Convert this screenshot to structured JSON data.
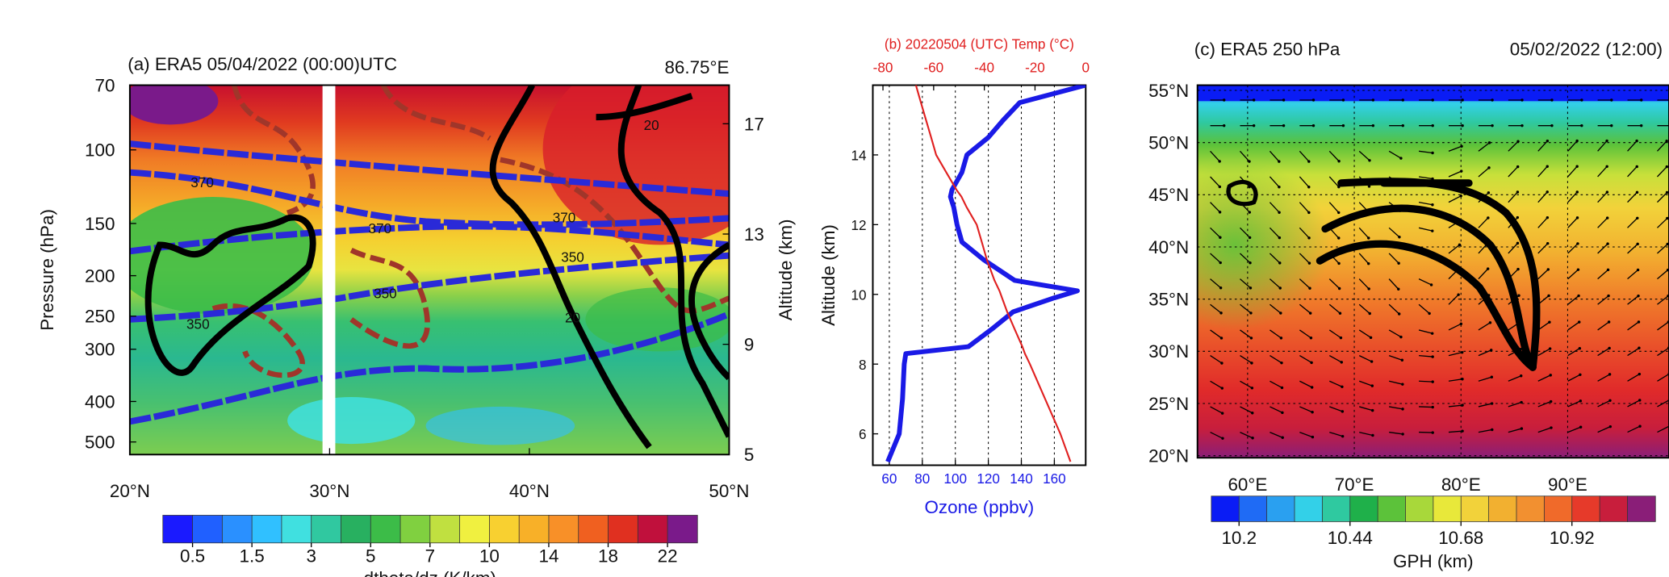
{
  "chart_data": [
    {
      "type": "contour",
      "title": "(a) ERA5 05/04/2022 (00:00)UTC",
      "annotation": "86.75°E",
      "ylabel": "Pressure (hPa)",
      "y2label": "Altitude (km)",
      "ylog": true,
      "xlim": [
        20,
        50
      ],
      "xticks": [
        {
          "value": 20,
          "label": "20°N"
        },
        {
          "value": 30,
          "label": "30°N"
        },
        {
          "value": 40,
          "label": "40°N"
        },
        {
          "value": 50,
          "label": "50°N"
        }
      ],
      "ylim": [
        536,
        70
      ],
      "yticks": [
        70,
        100,
        150,
        200,
        250,
        300,
        400,
        500
      ],
      "y2lim": [
        5,
        18.4
      ],
      "y2ticks": [
        5,
        9,
        13,
        17
      ],
      "contour_labels": [
        370,
        370,
        370,
        350,
        350,
        350,
        20,
        20
      ],
      "colorbar": {
        "label": "dtheta/dz (K/km)",
        "levels": [
          0,
          0.5,
          1,
          1.5,
          2,
          3,
          4,
          5,
          6,
          7,
          8,
          10,
          12,
          14,
          16,
          18,
          20,
          22,
          24
        ],
        "colors": [
          "#1a1aff",
          "#2060ff",
          "#2a90ff",
          "#30c0ff",
          "#40e0e0",
          "#30c8a0",
          "#28b060",
          "#3cbc48",
          "#80d040",
          "#c0e040",
          "#f0f040",
          "#f8d030",
          "#f8b028",
          "#f89028",
          "#f06020",
          "#e03020",
          "#c0103c",
          "#7a1a8a"
        ],
        "ticks": [
          0.5,
          1.5,
          3,
          5,
          7,
          10,
          14,
          18,
          22
        ]
      }
    },
    {
      "type": "line",
      "title": "(b) 20220504 (UTC) Temp (°C)",
      "xlabel": "Ozone (ppbv)",
      "ylabel": "Altitude (km)",
      "grid": true,
      "xlim": [
        50,
        179
      ],
      "xticks": [
        60,
        80,
        100,
        120,
        140,
        160
      ],
      "x2lim": [
        -84,
        0
      ],
      "x2ticks": [
        -80,
        -60,
        -40,
        -20,
        0
      ],
      "ylim": [
        5.1,
        16
      ],
      "yticks": [
        6,
        8,
        10,
        12,
        14
      ],
      "y": [
        5.2,
        6,
        7,
        8,
        8.3,
        8.5,
        9,
        9.5,
        9.9,
        10.1,
        10.4,
        11,
        11.5,
        12,
        12.5,
        12.8,
        13,
        13.5,
        14,
        14.5,
        15,
        15.5,
        16
      ],
      "series": [
        {
          "color": "#1a1ae6",
          "values": [
            59,
            66,
            68,
            69,
            70,
            108,
            122,
            135,
            160,
            174,
            136,
            117,
            104,
            101,
            99,
            97,
            98,
            104,
            107,
            120,
            129,
            139,
            179
          ]
        },
        {
          "color": "#e02020",
          "axis": "x2",
          "values": [
            -6,
            -10,
            -16,
            -22,
            -24,
            -25,
            -28,
            -31,
            -33,
            -34,
            -36,
            -39,
            -41,
            -43,
            -47,
            -49,
            -51,
            -55,
            -59,
            -61,
            -63,
            -65,
            -67
          ]
        }
      ]
    },
    {
      "type": "map",
      "title": "(c)  ERA5 250 hPa",
      "subtitle": "05/02/2022 (12:00)",
      "xlim": [
        55.3,
        99.5
      ],
      "xticks": [
        {
          "value": 60,
          "label": "60°E"
        },
        {
          "value": 70,
          "label": "70°E"
        },
        {
          "value": 80,
          "label": "80°E"
        },
        {
          "value": 90,
          "label": "90°E"
        }
      ],
      "ylim": [
        19.8,
        55.5
      ],
      "yticks": [
        {
          "value": 20,
          "label": "20°N"
        },
        {
          "value": 25,
          "label": "25°N"
        },
        {
          "value": 30,
          "label": "30°N"
        },
        {
          "value": 35,
          "label": "35°N"
        },
        {
          "value": 40,
          "label": "40°N"
        },
        {
          "value": 45,
          "label": "45°N"
        },
        {
          "value": 50,
          "label": "50°N"
        },
        {
          "value": 55,
          "label": "55°N"
        }
      ],
      "colorbar": {
        "label": "GPH (km)",
        "levels": [
          10.14,
          10.2,
          10.26,
          10.32,
          10.38,
          10.44,
          10.5,
          10.56,
          10.62,
          10.68,
          10.74,
          10.8,
          10.86,
          10.92,
          10.98,
          11.04,
          11.1
        ],
        "colors": [
          "#0a1cf5",
          "#1f6bf5",
          "#2aa0f0",
          "#33d0e8",
          "#2fc9a0",
          "#1fb04a",
          "#5cc23a",
          "#a8d83a",
          "#e8e83a",
          "#f2d23a",
          "#f2b030",
          "#f29030",
          "#f06a2a",
          "#e63a2a",
          "#c81e3c",
          "#8a1e78"
        ],
        "ticks": [
          10.2,
          10.44,
          10.68,
          10.92
        ]
      }
    }
  ]
}
